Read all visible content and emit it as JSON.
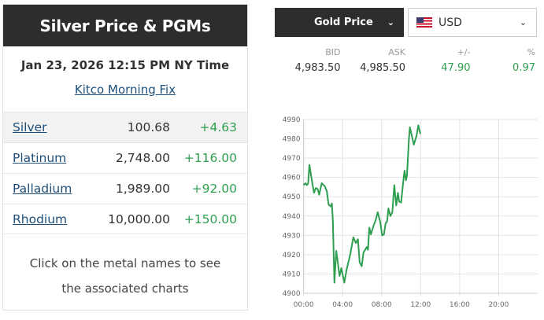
{
  "left": {
    "title": "Silver Price & PGMs",
    "timestamp": "Jan 23, 2026 12:15 PM NY Time",
    "fix_link": "Kitco Morning Fix",
    "metals": [
      {
        "name": "Silver",
        "price": "100.68",
        "change": "+4.63"
      },
      {
        "name": "Platinum",
        "price": "2,748.00",
        "change": "+116.00"
      },
      {
        "name": "Palladium",
        "price": "1,989.00",
        "change": "+92.00"
      },
      {
        "name": "Rhodium",
        "price": "10,000.00",
        "change": "+150.00"
      }
    ],
    "footer_line1": "Click on the metal names to see",
    "footer_line2": "the associated charts"
  },
  "right": {
    "metal_select": "Gold Price",
    "currency_select": "USD",
    "currency_flag": "us-flag-icon",
    "quote": {
      "headers": [
        "BID",
        "ASK",
        "+/-",
        "%"
      ],
      "values": [
        "4,983.50",
        "4,985.50",
        "47.90",
        "0.97"
      ]
    }
  },
  "colors": {
    "positive": "#2e9e4f",
    "header_bg": "#2d2d2d",
    "link": "#1e4f7a"
  },
  "chart_data": {
    "type": "line",
    "ylim": [
      4900,
      4990
    ],
    "yticks": [
      "4990",
      "4980",
      "4970",
      "4960",
      "4950",
      "4940",
      "4930",
      "4920",
      "4910",
      "4900"
    ],
    "xlim": [
      0,
      24
    ],
    "xticks": [
      "00:00",
      "04:00",
      "08:00",
      "12:00",
      "16:00",
      "20:00"
    ],
    "grid": true,
    "color": "#2e9e4f",
    "series": [
      {
        "x": [
          0,
          0.2,
          0.34,
          0.47,
          0.6,
          0.8,
          1.07,
          1.25,
          1.44,
          1.6,
          1.86,
          2.17,
          2.38,
          2.56,
          2.77,
          2.9,
          3.0,
          3.16,
          3.35,
          3.69,
          3.87,
          4.18,
          4.4,
          4.78,
          5.1,
          5.36,
          5.57,
          5.75,
          5.96,
          6.14,
          6.48,
          6.6,
          6.74,
          6.9,
          7.17,
          7.4,
          7.6,
          7.86,
          8.05,
          8.24,
          8.4,
          8.57,
          8.7,
          8.9,
          9.1,
          9.3,
          9.5,
          9.67,
          9.8,
          10.0,
          10.2,
          10.35,
          10.5,
          10.6,
          10.8,
          10.9,
          11.3,
          11.58,
          11.76,
          11.97
        ],
        "y": [
          4956,
          4957,
          4956,
          4957,
          4966.5,
          4960,
          4952,
          4954.5,
          4954,
          4951,
          4957,
          4955.5,
          4953,
          4946,
          4945,
          4946.5,
          4938,
          4905.5,
          4922,
          4909,
          4913,
          4905.5,
          4912,
          4920,
          4929,
          4926,
          4928,
          4916,
          4914,
          4921,
          4924,
          4922.5,
          4934,
          4930.5,
          4935,
          4938,
          4942,
          4937,
          4930,
          4930.5,
          4936,
          4937.5,
          4944,
          4940,
          4942,
          4956,
          4945.5,
          4952,
          4947.5,
          4947,
          4957,
          4963.5,
          4958.5,
          4961,
          4980,
          4986,
          4977,
          4981.5,
          4987,
          4982.5
        ]
      }
    ]
  }
}
